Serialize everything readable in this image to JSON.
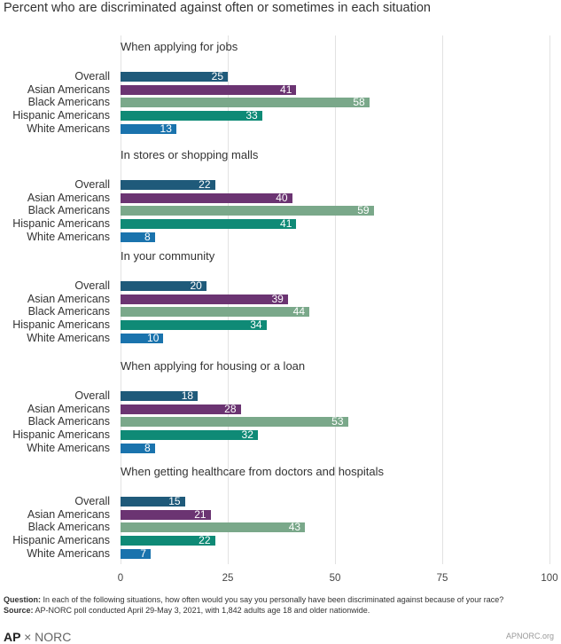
{
  "title": "Percent who are discriminated against often or sometimes in each situation",
  "colors": {
    "Overall": "#1f5a7a",
    "Asian Americans": "#6b3472",
    "Black Americans": "#7aa88a",
    "Hispanic Americans": "#0f8a76",
    "White Americans": "#1a73ad"
  },
  "chart_data": {
    "type": "bar",
    "orientation": "horizontal",
    "title": "Percent who are discriminated against often or sometimes in each situation",
    "xlim": [
      0,
      100
    ],
    "x_ticks": [
      "0",
      "25",
      "50",
      "75",
      "100"
    ],
    "grid": true,
    "groups": [
      {
        "name": "When applying for jobs",
        "categories": [
          "Overall",
          "Asian Americans",
          "Black Americans",
          "Hispanic Americans",
          "White Americans"
        ],
        "values": [
          25,
          41,
          58,
          33,
          13
        ]
      },
      {
        "name": "In stores or shopping malls",
        "categories": [
          "Overall",
          "Asian Americans",
          "Black Americans",
          "Hispanic Americans",
          "White Americans"
        ],
        "values": [
          22,
          40,
          59,
          41,
          8
        ]
      },
      {
        "name": "In your community",
        "categories": [
          "Overall",
          "Asian Americans",
          "Black Americans",
          "Hispanic Americans",
          "White Americans"
        ],
        "values": [
          20,
          39,
          44,
          34,
          10
        ]
      },
      {
        "name": "When applying for housing or a loan",
        "categories": [
          "Overall",
          "Asian Americans",
          "Black Americans",
          "Hispanic Americans",
          "White Americans"
        ],
        "values": [
          18,
          28,
          53,
          32,
          8
        ]
      },
      {
        "name": "When getting healthcare from doctors and hospitals",
        "categories": [
          "Overall",
          "Asian Americans",
          "Black Americans",
          "Hispanic Americans",
          "White Americans"
        ],
        "values": [
          15,
          21,
          43,
          22,
          7
        ]
      }
    ]
  },
  "footnotes": {
    "question_label": "Question:",
    "question_text": " In each of the following situations, how often would you say you personally have been discriminated against because of your race?",
    "source_label": "Source:",
    "source_text": " AP-NORC poll conducted April 29-May 3, 2021, with 1,842 adults age 18 and older nationwide."
  },
  "branding": {
    "ap": "AP",
    "norc": "× NORC",
    "website": "APNORC.org"
  }
}
